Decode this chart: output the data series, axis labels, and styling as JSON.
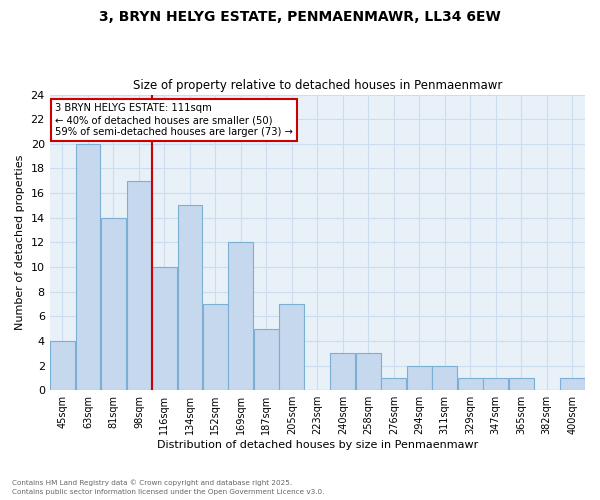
{
  "title1": "3, BRYN HELYG ESTATE, PENMAENMAWR, LL34 6EW",
  "title2": "Size of property relative to detached houses in Penmaenmawr",
  "xlabel": "Distribution of detached houses by size in Penmaenmawr",
  "ylabel": "Number of detached properties",
  "categories": [
    "45sqm",
    "63sqm",
    "81sqm",
    "98sqm",
    "116sqm",
    "134sqm",
    "152sqm",
    "169sqm",
    "187sqm",
    "205sqm",
    "223sqm",
    "240sqm",
    "258sqm",
    "276sqm",
    "294sqm",
    "311sqm",
    "329sqm",
    "347sqm",
    "365sqm",
    "382sqm",
    "400sqm"
  ],
  "values": [
    4,
    20,
    14,
    17,
    10,
    15,
    7,
    12,
    5,
    7,
    0,
    3,
    3,
    1,
    2,
    2,
    1,
    1,
    1,
    0,
    1
  ],
  "bar_color": "#c5d8ed",
  "bar_edge_color": "#7bafd4",
  "grid_color": "#ccddf0",
  "bg_color": "#e8f1f8",
  "plot_bg_color": "#e8f1f8",
  "fig_bg_color": "#ffffff",
  "annotation_title": "3 BRYN HELYG ESTATE: 111sqm",
  "annotation_line1": "← 40% of detached houses are smaller (50)",
  "annotation_line2": "59% of semi-detached houses are larger (73) →",
  "annotation_box_color": "#ffffff",
  "annotation_box_edge": "#cc0000",
  "red_line_color": "#cc0000",
  "ylim": [
    0,
    24
  ],
  "yticks": [
    0,
    2,
    4,
    6,
    8,
    10,
    12,
    14,
    16,
    18,
    20,
    22,
    24
  ],
  "footnote1": "Contains HM Land Registry data © Crown copyright and database right 2025.",
  "footnote2": "Contains public sector information licensed under the Open Government Licence v3.0."
}
